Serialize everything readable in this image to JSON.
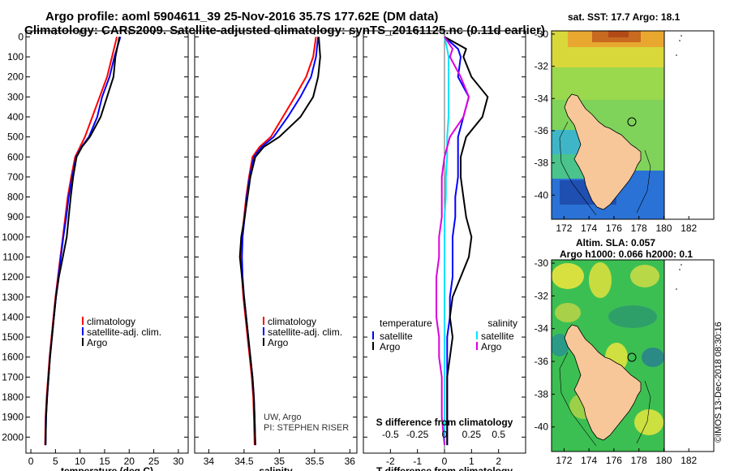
{
  "titles": {
    "line1": "Argo profile: aoml 5904611_39 25-Nov-2016 35.7S 177.62E (DM data)",
    "line2": "Climatology: CARS2009. Satellite-adjusted climatology: synTS_20161125.nc (0.11d earlier)"
  },
  "colors": {
    "climatology": "#ff0000",
    "satellite": "#0000ff",
    "argo": "#000000",
    "satellite_salinity": "#00e5ff",
    "argo_salinity": "#dd00dd",
    "land": "#f7c79a"
  },
  "depth_ticks": [
    "0",
    "100",
    "200",
    "300",
    "400",
    "500",
    "600",
    "700",
    "800",
    "900",
    "1000",
    "1100",
    "1200",
    "1300",
    "1400",
    "1500",
    "1600",
    "1700",
    "1800",
    "1900",
    "2000"
  ],
  "chart_data": [
    {
      "type": "line",
      "id": "temperature",
      "xlabel": "temperature (deg C)",
      "ylabel": "",
      "xlim": [
        -1,
        32
      ],
      "ylim": [
        2080,
        -30
      ],
      "xticks": [
        "0",
        "5",
        "10",
        "15",
        "20",
        "25",
        "30"
      ],
      "legend": [
        "climatology",
        "satellite-adj. clim.",
        "Argo"
      ],
      "series": [
        {
          "name": "climatology",
          "color": "#ff0000",
          "x": [
            17.5,
            16.5,
            15.5,
            14.0,
            12.5,
            11.0,
            10.0,
            9.0,
            8.2,
            7.5,
            7.0,
            6.5,
            6.0,
            5.5,
            5.0,
            4.6,
            4.2,
            3.8,
            3.5,
            3.2,
            3.0,
            2.9
          ],
          "y": [
            0,
            100,
            200,
            300,
            400,
            500,
            550,
            600,
            700,
            800,
            900,
            1000,
            1100,
            1200,
            1300,
            1400,
            1500,
            1600,
            1700,
            1800,
            1900,
            2040
          ]
        },
        {
          "name": "satellite-adj. clim.",
          "color": "#0000ff",
          "x": [
            18.2,
            17.0,
            16.0,
            14.5,
            13.5,
            11.8,
            10.3,
            9.2,
            8.4,
            7.7,
            7.2,
            6.6,
            6.1,
            5.6,
            5.1,
            4.7,
            4.3,
            3.9,
            3.6,
            3.3,
            3.1,
            3.0
          ],
          "y": [
            0,
            100,
            200,
            300,
            400,
            500,
            550,
            600,
            700,
            800,
            900,
            1000,
            1100,
            1200,
            1300,
            1400,
            1500,
            1600,
            1700,
            1800,
            1900,
            2040
          ]
        },
        {
          "name": "Argo",
          "color": "#000000",
          "x": [
            18.0,
            17.2,
            16.8,
            15.5,
            14.2,
            12.0,
            10.4,
            9.3,
            8.6,
            8.1,
            7.7,
            7.3,
            6.5,
            5.7,
            5.1,
            4.7,
            4.3,
            3.9,
            3.6,
            3.3,
            3.1,
            3.0
          ],
          "y": [
            0,
            100,
            200,
            300,
            400,
            500,
            550,
            600,
            700,
            800,
            900,
            1000,
            1100,
            1200,
            1300,
            1400,
            1500,
            1600,
            1700,
            1800,
            1900,
            2040
          ]
        }
      ]
    },
    {
      "type": "line",
      "id": "salinity",
      "xlabel": "salinity",
      "ylabel": "",
      "xlim": [
        33.8,
        36.1
      ],
      "ylim": [
        2080,
        -30
      ],
      "xticks": [
        "34",
        "34.5",
        "35",
        "35.5",
        "36"
      ],
      "legend": [
        "climatology",
        "satellite-adj. clim.",
        "Argo"
      ],
      "annotation": [
        "UW, Argo",
        "PI: STEPHEN RISER"
      ],
      "series": [
        {
          "name": "climatology",
          "color": "#ff0000",
          "x": [
            35.52,
            35.48,
            35.38,
            35.22,
            35.05,
            34.88,
            34.72,
            34.62,
            34.57,
            34.53,
            34.5,
            34.47,
            34.46,
            34.47,
            34.49,
            34.52,
            34.55,
            34.58,
            34.61,
            34.63,
            34.64,
            34.65
          ],
          "y": [
            0,
            100,
            200,
            300,
            400,
            500,
            550,
            600,
            700,
            800,
            900,
            1000,
            1100,
            1200,
            1300,
            1400,
            1500,
            1600,
            1700,
            1800,
            1900,
            2040
          ]
        },
        {
          "name": "satellite-adj. clim.",
          "color": "#0000ff",
          "x": [
            35.55,
            35.52,
            35.45,
            35.3,
            35.12,
            34.92,
            34.75,
            34.64,
            34.58,
            34.54,
            34.51,
            34.48,
            34.47,
            34.48,
            34.5,
            34.53,
            34.56,
            34.59,
            34.62,
            34.64,
            34.65,
            34.66
          ],
          "y": [
            0,
            100,
            200,
            300,
            400,
            500,
            550,
            600,
            700,
            800,
            900,
            1000,
            1100,
            1200,
            1300,
            1400,
            1500,
            1600,
            1700,
            1800,
            1900,
            2040
          ]
        },
        {
          "name": "Argo",
          "color": "#000000",
          "x": [
            35.56,
            35.58,
            35.55,
            35.48,
            35.3,
            35.0,
            34.78,
            34.66,
            34.59,
            34.55,
            34.51,
            34.46,
            34.44,
            34.47,
            34.5,
            34.53,
            34.56,
            34.59,
            34.62,
            34.64,
            34.65,
            34.66
          ],
          "y": [
            0,
            100,
            200,
            300,
            400,
            500,
            550,
            600,
            700,
            800,
            900,
            1000,
            1100,
            1200,
            1300,
            1400,
            1500,
            1600,
            1700,
            1800,
            1900,
            2040
          ]
        }
      ]
    },
    {
      "type": "line",
      "id": "difference",
      "xlabel": "T difference from climatology",
      "xlabel2": "S difference from climatology",
      "ylabel": "",
      "xlim": [
        -3,
        3
      ],
      "ylim": [
        2080,
        -30
      ],
      "xticks": [
        "-2",
        "-1",
        "0",
        "1",
        "2"
      ],
      "xticks2": [
        "-0.5",
        "-0.25",
        "0",
        "0.25",
        "0.5"
      ],
      "legend_left_title": "temperature",
      "legend_right_title": "salinity",
      "legend_left": [
        "satellite",
        "Argo"
      ],
      "legend_right": [
        "satellite",
        "Argo"
      ],
      "series": [
        {
          "name": "temperature satellite",
          "color": "#0000ff",
          "x": [
            0.0,
            0.5,
            0.6,
            0.5,
            0.9,
            0.7,
            0.5,
            0.5,
            0.5,
            0.4,
            0.4,
            0.3,
            0.3,
            0.3,
            0.2,
            0.2,
            0.1,
            0.1,
            0.1,
            0.1,
            0.1
          ],
          "y": [
            0,
            60,
            100,
            200,
            300,
            400,
            500,
            600,
            700,
            800,
            900,
            1000,
            1100,
            1200,
            1300,
            1400,
            1500,
            1600,
            1700,
            1900,
            2040
          ]
        },
        {
          "name": "temperature Argo",
          "color": "#000000",
          "x": [
            0.0,
            0.8,
            0.7,
            1.0,
            1.6,
            1.4,
            0.8,
            0.6,
            0.6,
            0.7,
            0.8,
            1.0,
            0.9,
            0.6,
            0.3,
            0.2,
            0.3,
            0.2,
            0.1,
            0.1,
            0.1
          ],
          "y": [
            0,
            60,
            100,
            200,
            300,
            400,
            500,
            600,
            700,
            800,
            900,
            1000,
            1100,
            1200,
            1300,
            1400,
            1500,
            1600,
            1700,
            1900,
            2040
          ]
        },
        {
          "name": "salinity satellite",
          "color": "#00e5ff",
          "x": [
            0.0,
            0.1,
            0.15,
            0.15,
            0.15,
            0.15,
            0.1,
            0.1,
            0.05,
            0.05,
            0.0,
            0.0,
            0.0,
            0.0,
            0.0,
            0.0,
            0.0,
            0.0,
            0.0,
            0.0,
            0.0
          ],
          "y": [
            0,
            60,
            100,
            200,
            300,
            400,
            500,
            600,
            700,
            800,
            900,
            1000,
            1100,
            1200,
            1300,
            1400,
            1500,
            1600,
            1700,
            1900,
            2040
          ]
        },
        {
          "name": "salinity Argo",
          "color": "#dd00dd",
          "x": [
            0.0,
            0.3,
            0.2,
            0.6,
            0.9,
            0.7,
            0.2,
            0.0,
            -0.1,
            -0.1,
            -0.1,
            -0.2,
            -0.2,
            -0.3,
            -0.3,
            -0.3,
            -0.2,
            -0.2,
            -0.1,
            -0.1,
            0.0
          ],
          "y": [
            0,
            60,
            100,
            200,
            300,
            400,
            500,
            600,
            700,
            800,
            900,
            1000,
            1100,
            1200,
            1300,
            1400,
            1500,
            1600,
            1700,
            1900,
            2040
          ]
        }
      ]
    },
    {
      "type": "heatmap",
      "id": "sst_map",
      "title": "sat. SST: 17.7 Argo: 18.1",
      "xticks": [
        "172",
        "174",
        "176",
        "178",
        "180",
        "182"
      ],
      "yticks": [
        "-30",
        "-32",
        "-34",
        "-36",
        "-38",
        "-40"
      ],
      "xlim": [
        171,
        184
      ],
      "ylim": [
        -41.5,
        -29.8
      ],
      "float_position": {
        "lon": 177.62,
        "lat": -35.7
      }
    },
    {
      "type": "heatmap",
      "id": "sla_map",
      "title_line1": "Altim. SLA: 0.057",
      "title_line2": "Argo h1000: 0.066 h2000: 0.1",
      "xticks": [
        "172",
        "174",
        "176",
        "178",
        "180",
        "182"
      ],
      "yticks": [
        "-30",
        "-32",
        "-34",
        "-36",
        "-38",
        "-40"
      ],
      "xlim": [
        171,
        184
      ],
      "ylim": [
        -41.5,
        -29.8
      ],
      "float_position": {
        "lon": 177.62,
        "lat": -35.7
      }
    }
  ],
  "stamp": "©IMOS 13-Dec-2018 08:30:16"
}
